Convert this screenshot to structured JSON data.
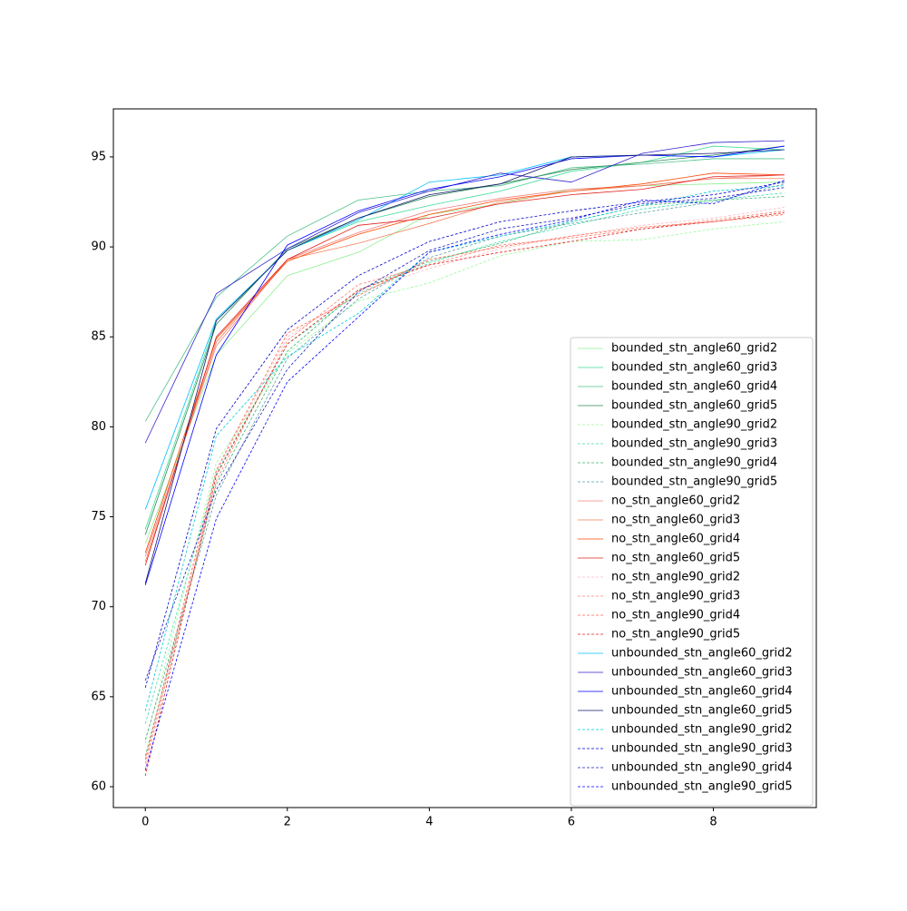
{
  "chart_data": {
    "type": "line",
    "x": [
      0,
      1,
      2,
      3,
      4,
      5,
      6,
      7,
      8,
      9
    ],
    "xlim": [
      -0.45,
      9.45
    ],
    "xticks": [
      0,
      2,
      4,
      6,
      8
    ],
    "ylim": [
      58.84,
      97.67
    ],
    "yticks": [
      60,
      65,
      70,
      75,
      80,
      85,
      90,
      95
    ],
    "legend": "lower right",
    "series": [
      {
        "name": "bounded_stn_angle60_grid2",
        "color": "#90ee90",
        "style": "solid",
        "values": [
          73.5,
          84.0,
          88.4,
          89.7,
          91.8,
          92.4,
          93.2,
          93.4,
          93.5,
          93.6
        ]
      },
      {
        "name": "bounded_stn_angle60_grid3",
        "color": "#3ddc97",
        "style": "solid",
        "values": [
          74.3,
          85.9,
          89.8,
          91.4,
          92.3,
          93.1,
          94.2,
          94.7,
          95.6,
          95.4
        ]
      },
      {
        "name": "bounded_stn_angle60_grid4",
        "color": "#4cc38a",
        "style": "solid",
        "values": [
          80.3,
          87.2,
          90.6,
          92.6,
          93.1,
          93.4,
          94.4,
          94.6,
          94.9,
          94.9
        ]
      },
      {
        "name": "bounded_stn_angle60_grid5",
        "color": "#2e8b57",
        "style": "solid",
        "values": [
          74.0,
          85.7,
          89.9,
          91.6,
          92.8,
          93.5,
          94.3,
          94.7,
          95.1,
          95.6
        ]
      },
      {
        "name": "bounded_stn_angle90_grid2",
        "color": "#98fb98",
        "style": "dashed",
        "values": [
          62.4,
          78.0,
          84.1,
          87.0,
          88.0,
          89.5,
          90.3,
          90.4,
          91.0,
          91.4
        ]
      },
      {
        "name": "bounded_stn_angle90_grid3",
        "color": "#40e0b0",
        "style": "dashed",
        "values": [
          63.5,
          77.4,
          84.6,
          87.4,
          89.1,
          90.3,
          91.2,
          92.1,
          92.6,
          93.0
        ]
      },
      {
        "name": "bounded_stn_angle90_grid4",
        "color": "#3cb371",
        "style": "dashed",
        "values": [
          61.7,
          76.8,
          84.2,
          87.6,
          89.2,
          90.2,
          91.4,
          92.3,
          92.6,
          92.8
        ]
      },
      {
        "name": "bounded_stn_angle90_grid5",
        "color": "#5f9ea0",
        "style": "dashed",
        "values": [
          62.6,
          76.2,
          83.8,
          87.1,
          89.4,
          90.6,
          91.3,
          91.9,
          92.5,
          93.5
        ]
      },
      {
        "name": "no_stn_angle60_grid2",
        "color": "#f08080",
        "style": "solid",
        "values": [
          72.8,
          84.5,
          89.3,
          90.8,
          92.0,
          92.7,
          93.2,
          93.4,
          93.8,
          94.0
        ]
      },
      {
        "name": "no_stn_angle60_grid3",
        "color": "#f4805a",
        "style": "solid",
        "values": [
          72.5,
          84.7,
          89.3,
          90.2,
          91.3,
          92.5,
          93.1,
          93.4,
          93.8,
          93.8
        ]
      },
      {
        "name": "no_stn_angle60_grid4",
        "color": "#ff4500",
        "style": "solid",
        "values": [
          73.0,
          84.9,
          89.2,
          90.7,
          91.8,
          92.6,
          93.1,
          93.5,
          94.1,
          94.0
        ]
      },
      {
        "name": "no_stn_angle60_grid5",
        "color": "#e0201d",
        "style": "solid",
        "values": [
          72.3,
          85.0,
          89.3,
          91.2,
          91.6,
          92.4,
          92.9,
          93.2,
          93.9,
          94.0
        ]
      },
      {
        "name": "no_stn_angle90_grid2",
        "color": "#ffb6c1",
        "style": "dashed",
        "values": [
          61.0,
          77.5,
          85.0,
          87.5,
          88.8,
          89.9,
          90.6,
          91.2,
          91.6,
          92.2
        ]
      },
      {
        "name": "no_stn_angle90_grid3",
        "color": "#fa8072",
        "style": "dashed",
        "values": [
          61.3,
          77.0,
          84.8,
          87.9,
          89.0,
          90.1,
          90.5,
          91.0,
          91.5,
          92.0
        ]
      },
      {
        "name": "no_stn_angle90_grid4",
        "color": "#ff6347",
        "style": "dashed",
        "values": [
          61.5,
          77.6,
          85.2,
          87.3,
          89.3,
          90.0,
          90.6,
          91.1,
          91.4,
          91.8
        ]
      },
      {
        "name": "no_stn_angle90_grid5",
        "color": "#e0201d",
        "style": "dashed",
        "values": [
          60.6,
          77.3,
          84.6,
          87.6,
          89.0,
          89.7,
          90.3,
          91.0,
          91.4,
          91.9
        ]
      },
      {
        "name": "unbounded_stn_angle60_grid2",
        "color": "#00bfff",
        "style": "solid",
        "values": [
          75.4,
          86.0,
          89.8,
          91.5,
          93.6,
          94.0,
          95.0,
          95.1,
          95.0,
          95.4
        ]
      },
      {
        "name": "unbounded_stn_angle60_grid3",
        "color": "#3322cc",
        "style": "solid",
        "values": [
          79.1,
          87.4,
          89.9,
          91.9,
          93.1,
          94.1,
          93.6,
          95.2,
          95.8,
          95.9
        ]
      },
      {
        "name": "unbounded_stn_angle60_grid4",
        "color": "#0000ff",
        "style": "solid",
        "values": [
          71.2,
          84.0,
          90.1,
          92.0,
          93.2,
          93.9,
          94.9,
          95.1,
          95.0,
          95.6
        ]
      },
      {
        "name": "unbounded_stn_angle60_grid5",
        "color": "#191970",
        "style": "solid",
        "values": [
          71.3,
          85.9,
          89.8,
          91.6,
          92.9,
          93.5,
          95.0,
          95.1,
          95.2,
          95.4
        ]
      },
      {
        "name": "unbounded_stn_angle90_grid2",
        "color": "#00ced1",
        "style": "dashed",
        "values": [
          64.2,
          79.5,
          83.9,
          86.3,
          89.7,
          90.6,
          91.4,
          92.3,
          93.1,
          93.4
        ]
      },
      {
        "name": "unbounded_stn_angle90_grid3",
        "color": "#0000cd",
        "style": "dashed",
        "values": [
          65.5,
          79.9,
          85.4,
          88.4,
          90.3,
          91.4,
          92.0,
          92.5,
          92.9,
          93.6
        ]
      },
      {
        "name": "unbounded_stn_angle90_grid4",
        "color": "#1e1ebe",
        "style": "dashed",
        "values": [
          65.9,
          76.5,
          83.2,
          87.5,
          89.8,
          91.0,
          91.6,
          92.4,
          92.7,
          93.3
        ]
      },
      {
        "name": "unbounded_stn_angle90_grid5",
        "color": "#0000ff",
        "style": "dashed",
        "values": [
          60.9,
          74.9,
          82.5,
          86.1,
          89.7,
          90.7,
          91.5,
          92.6,
          92.4,
          93.7
        ]
      }
    ]
  }
}
